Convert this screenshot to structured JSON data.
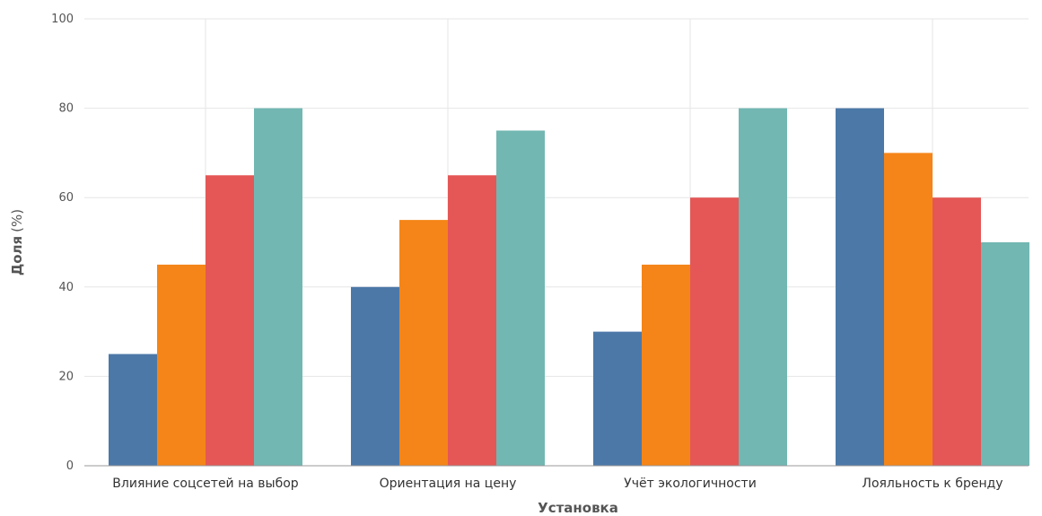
{
  "chart_data": {
    "type": "bar",
    "categories": [
      "Влияние соцсетей на выбор",
      "Ориентация на цену",
      "Учёт экологичности",
      "Лояльность к бренду"
    ],
    "series": [
      {
        "values": [
          25,
          40,
          30,
          80
        ],
        "color": "#4c78a8"
      },
      {
        "values": [
          45,
          55,
          45,
          70
        ],
        "color": "#f58518"
      },
      {
        "values": [
          65,
          65,
          60,
          60
        ],
        "color": "#e45756"
      },
      {
        "values": [
          80,
          75,
          80,
          50
        ],
        "color": "#72b7b2"
      }
    ],
    "xlabel": "Установка",
    "ylabel": "Доля",
    "ylabel_unit": "(%)",
    "ylim": [
      0,
      100
    ],
    "yticks": [
      0,
      20,
      40,
      60,
      80,
      100
    ],
    "grid": true,
    "legend": "none"
  }
}
